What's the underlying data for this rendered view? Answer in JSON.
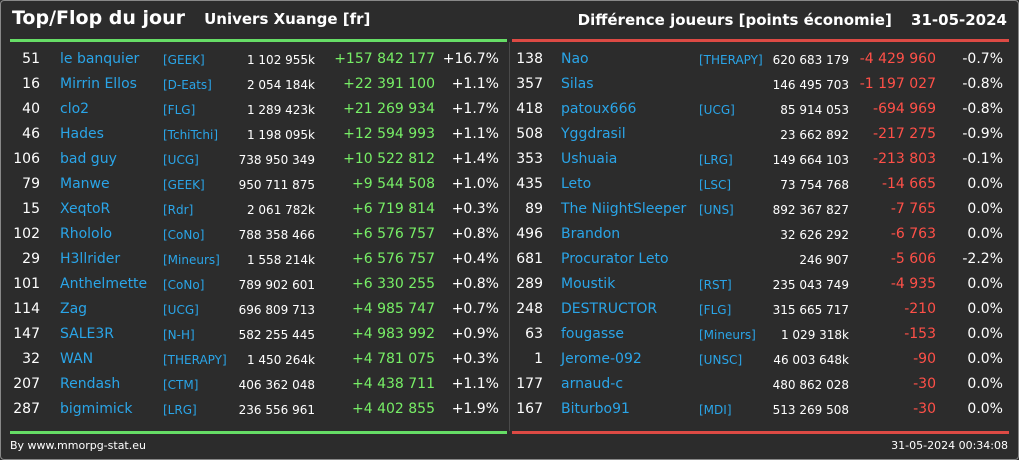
{
  "header": {
    "title": "Top/Flop du jour",
    "universe": "Univers Xuange [fr]",
    "subtitle": "Différence joueurs [points économie]",
    "date": "31-05-2024"
  },
  "colors": {
    "background": "#2c2c2c",
    "name_blue": "#2aa5e8",
    "gain_green": "#77ee66",
    "loss_red": "#ff5048",
    "top_line": "#66dd66",
    "flop_line": "#dd4a44"
  },
  "top": [
    {
      "rank": "51",
      "name": "le banquier",
      "tag": "[GEEK]",
      "points": "1 102 955k",
      "diff": "+157 842 177",
      "pct": "+16.7%"
    },
    {
      "rank": "16",
      "name": "Mirrin Ellos",
      "tag": "[D-Eats]",
      "points": "2 054 184k",
      "diff": "+22 391 100",
      "pct": "+1.1%"
    },
    {
      "rank": "40",
      "name": "clo2",
      "tag": "[FLG]",
      "points": "1 289 423k",
      "diff": "+21 269 934",
      "pct": "+1.7%"
    },
    {
      "rank": "46",
      "name": "Hades",
      "tag": "[TchiTchi]",
      "points": "1 198 095k",
      "diff": "+12 594 993",
      "pct": "+1.1%"
    },
    {
      "rank": "106",
      "name": "bad guy",
      "tag": "[UCG]",
      "points": "738 950 349",
      "diff": "+10 522 812",
      "pct": "+1.4%"
    },
    {
      "rank": "79",
      "name": "Manwe",
      "tag": "[GEEK]",
      "points": "950 711 875",
      "diff": "+9 544 508",
      "pct": "+1.0%"
    },
    {
      "rank": "15",
      "name": "XeqtoR",
      "tag": "[Rdr]",
      "points": "2 061 782k",
      "diff": "+6 719 814",
      "pct": "+0.3%"
    },
    {
      "rank": "102",
      "name": "Rhololo",
      "tag": "[CoNo]",
      "points": "788 358 466",
      "diff": "+6 576 757",
      "pct": "+0.8%"
    },
    {
      "rank": "29",
      "name": "H3llrider",
      "tag": "[Mineurs]",
      "points": "1 558 214k",
      "diff": "+6 576 757",
      "pct": "+0.4%"
    },
    {
      "rank": "101",
      "name": "Anthelmette",
      "tag": "[CoNo]",
      "points": "789 902 601",
      "diff": "+6 330 255",
      "pct": "+0.8%"
    },
    {
      "rank": "114",
      "name": "Zag",
      "tag": "[UCG]",
      "points": "696 809 713",
      "diff": "+4 985 747",
      "pct": "+0.7%"
    },
    {
      "rank": "147",
      "name": "SALE3R",
      "tag": "[N-H]",
      "points": "582 255 445",
      "diff": "+4 983 992",
      "pct": "+0.9%"
    },
    {
      "rank": "32",
      "name": "WAN",
      "tag": "[THERAPY]",
      "points": "1 450 264k",
      "diff": "+4 781 075",
      "pct": "+0.3%"
    },
    {
      "rank": "207",
      "name": "Rendash",
      "tag": "[CTM]",
      "points": "406 362 048",
      "diff": "+4 438 711",
      "pct": "+1.1%"
    },
    {
      "rank": "287",
      "name": "bigmimick",
      "tag": "[LRG]",
      "points": "236 556 961",
      "diff": "+4 402 855",
      "pct": "+1.9%"
    }
  ],
  "flop": [
    {
      "rank": "138",
      "name": "Nao",
      "tag": "[THERAPY]",
      "points": "620 683 179",
      "diff": "-4 429 960",
      "pct": "-0.7%"
    },
    {
      "rank": "357",
      "name": "Silas",
      "tag": "",
      "points": "146 495 703",
      "diff": "-1 197 027",
      "pct": "-0.8%"
    },
    {
      "rank": "418",
      "name": "patoux666",
      "tag": "[UCG]",
      "points": "85 914 053",
      "diff": "-694 969",
      "pct": "-0.8%"
    },
    {
      "rank": "508",
      "name": "Yggdrasil",
      "tag": "",
      "points": "23 662 892",
      "diff": "-217 275",
      "pct": "-0.9%"
    },
    {
      "rank": "353",
      "name": "Ushuaia",
      "tag": "[LRG]",
      "points": "149 664 103",
      "diff": "-213 803",
      "pct": "-0.1%"
    },
    {
      "rank": "435",
      "name": "Leto",
      "tag": "[LSC]",
      "points": "73 754 768",
      "diff": "-14 665",
      "pct": "0.0%"
    },
    {
      "rank": "89",
      "name": "The NiightSleeper",
      "tag": "[UNS]",
      "points": "892 367 827",
      "diff": "-7 765",
      "pct": "0.0%"
    },
    {
      "rank": "496",
      "name": "Brandon",
      "tag": "",
      "points": "32 626 292",
      "diff": "-6 763",
      "pct": "0.0%"
    },
    {
      "rank": "681",
      "name": "Procurator Leto",
      "tag": "",
      "points": "246 907",
      "diff": "-5 606",
      "pct": "-2.2%"
    },
    {
      "rank": "289",
      "name": "Moustik",
      "tag": "[RST]",
      "points": "235 043 749",
      "diff": "-4 935",
      "pct": "0.0%"
    },
    {
      "rank": "248",
      "name": "DESTRUCTOR",
      "tag": "[FLG]",
      "points": "315 665 717",
      "diff": "-210",
      "pct": "0.0%"
    },
    {
      "rank": "63",
      "name": "fougasse",
      "tag": "[Mineurs]",
      "points": "1 029 318k",
      "diff": "-153",
      "pct": "0.0%"
    },
    {
      "rank": "1",
      "name": "Jerome-092",
      "tag": "[UNSC]",
      "points": "46 003 648k",
      "diff": "-90",
      "pct": "0.0%"
    },
    {
      "rank": "177",
      "name": "arnaud-c",
      "tag": "",
      "points": "480 862 028",
      "diff": "-30",
      "pct": "0.0%"
    },
    {
      "rank": "167",
      "name": "Biturbo91",
      "tag": "[MDI]",
      "points": "513 269 508",
      "diff": "-30",
      "pct": "0.0%"
    }
  ],
  "footer": {
    "source": "By www.mmorpg-stat.eu",
    "timestamp": "31-05-2024 00:34:08"
  }
}
